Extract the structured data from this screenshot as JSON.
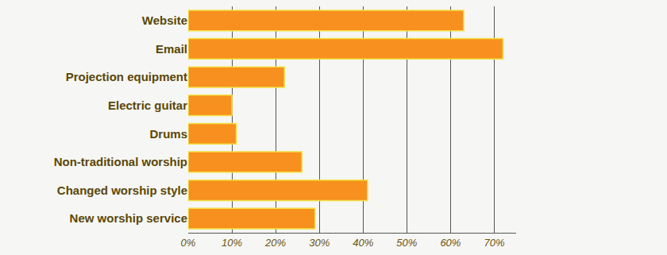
{
  "chart_data": {
    "type": "bar",
    "orientation": "horizontal",
    "categories": [
      "Website",
      "Email",
      "Projection equipment",
      "Electric guitar",
      "Drums",
      "Non-traditional worship",
      "Changed worship style",
      "New worship service"
    ],
    "values": [
      63,
      72,
      22,
      10,
      11,
      26,
      41,
      29
    ],
    "color": "#f7901e",
    "xlim": [
      0,
      75
    ],
    "xticks": [
      {
        "value": 0,
        "label": "0%"
      },
      {
        "value": 10,
        "label": "10%"
      },
      {
        "value": 20,
        "label": "20%"
      },
      {
        "value": 30,
        "label": "30%"
      },
      {
        "value": 40,
        "label": "40%"
      },
      {
        "value": 50,
        "label": "50%"
      },
      {
        "value": 60,
        "label": "60%"
      },
      {
        "value": 70,
        "label": "70%"
      }
    ],
    "grid": true
  }
}
